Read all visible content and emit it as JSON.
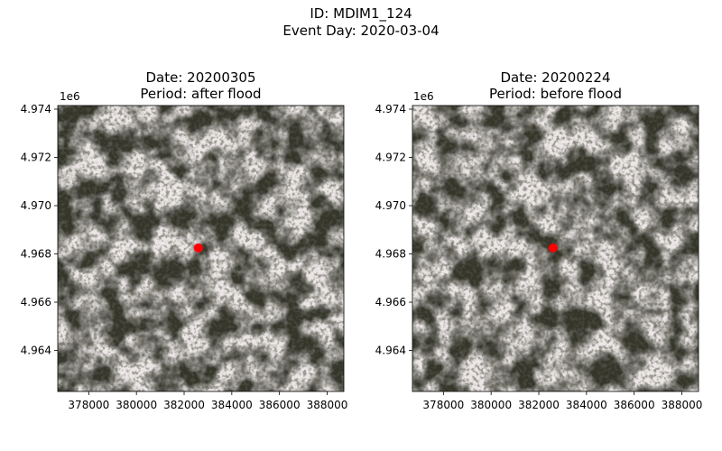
{
  "figure": {
    "id_line": "ID: MDIM1_124",
    "event_line": "Event Day: 2020-03-04"
  },
  "panels": [
    {
      "date_line": "Date: 20200305",
      "period_line": "Period: after flood"
    },
    {
      "date_line": "Date: 20200224",
      "period_line": "Period: before flood"
    }
  ],
  "axes": {
    "y_offset_label": "1e6",
    "y_ticks": [
      "4.974",
      "4.972",
      "4.970",
      "4.968",
      "4.966",
      "4.964"
    ],
    "x_ticks": [
      "378000",
      "380000",
      "382000",
      "384000",
      "386000",
      "388000"
    ]
  },
  "map": {
    "marker_color": "#ff0000",
    "marker_x": 382600,
    "marker_y": 4968250,
    "x_range": [
      376700,
      388700
    ],
    "y_range": [
      4962300,
      4974150
    ]
  }
}
